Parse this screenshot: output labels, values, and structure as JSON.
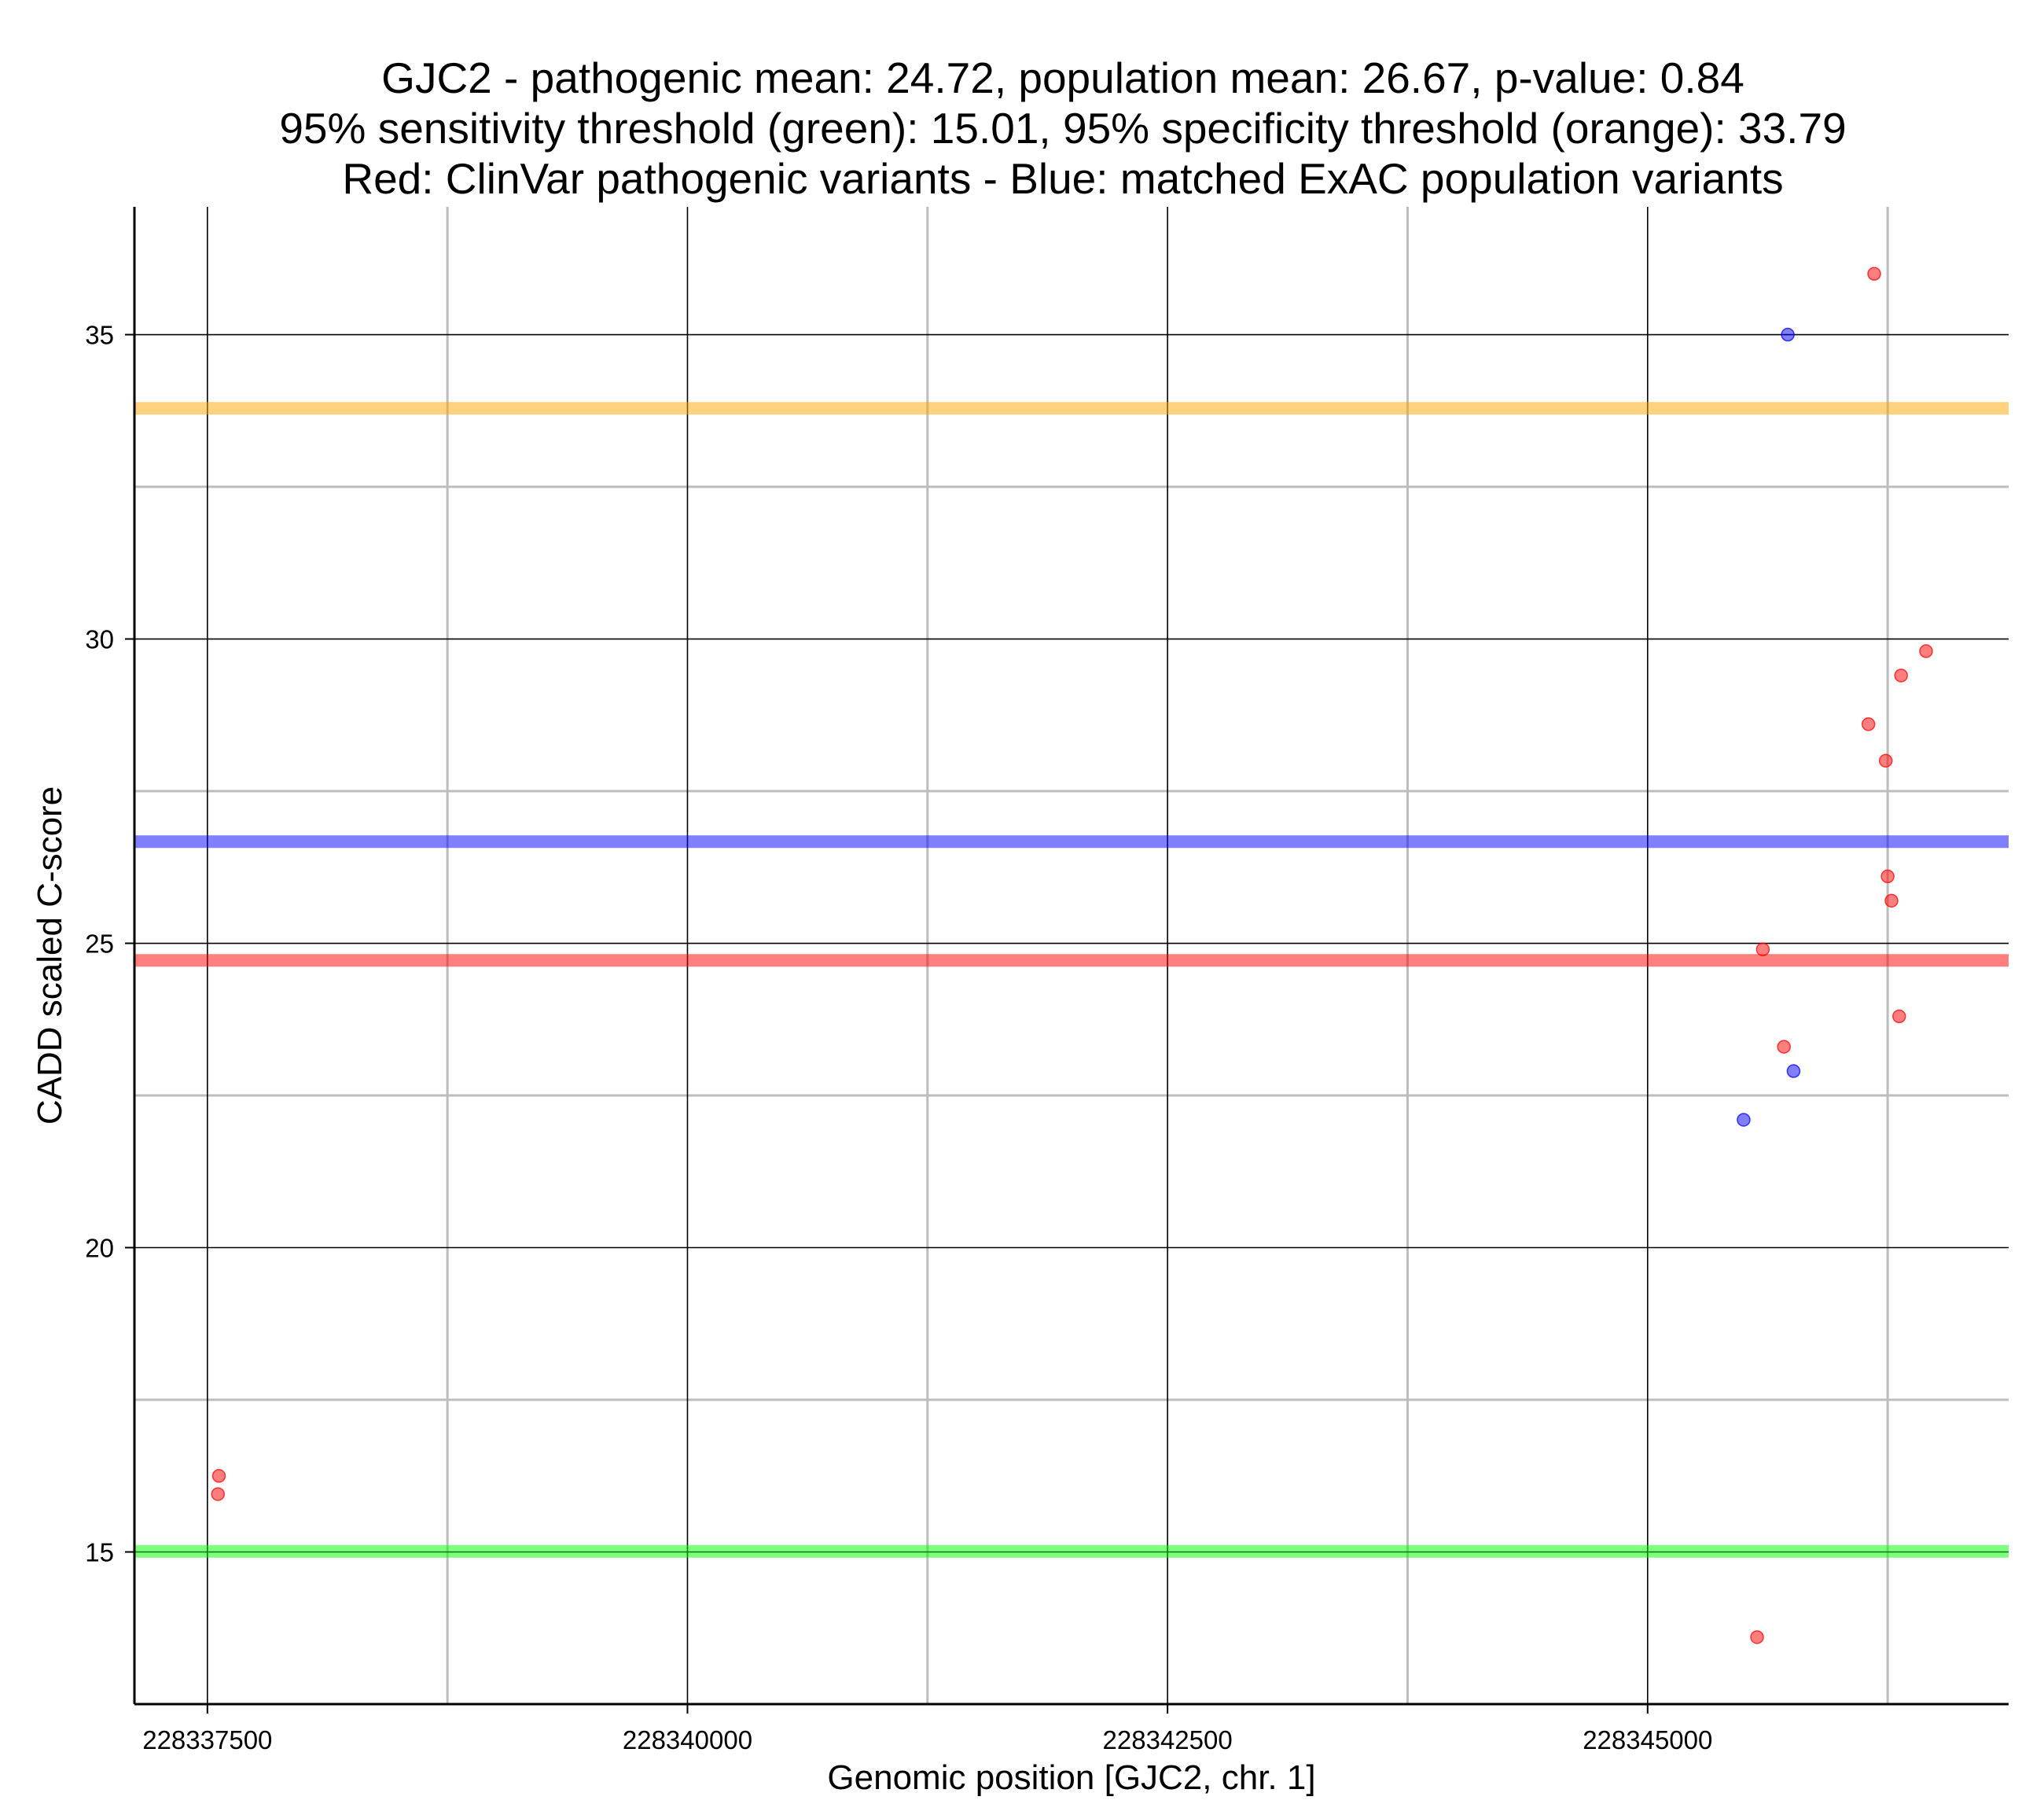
{
  "chart_data": {
    "type": "scatter",
    "title_lines": [
      "GJC2 - pathogenic mean: 24.72, population mean: 26.67, p-value: 0.84",
      "95% sensitivity threshold (green): 15.01, 95% specificity threshold (orange): 33.79",
      "Red: ClinVar pathogenic variants - Blue: matched ExAC population variants"
    ],
    "xlabel": "Genomic position [GJC2, chr. 1]",
    "ylabel": "CADD scaled C-score",
    "xlim": [
      228337120,
      228346880
    ],
    "ylim": [
      12.5,
      37.1
    ],
    "x_ticks": [
      {
        "value": 228337500,
        "label": "228337500"
      },
      {
        "value": 228340000,
        "label": "228340000"
      },
      {
        "value": 228342500,
        "label": "228342500"
      },
      {
        "value": 228345000,
        "label": "228345000"
      }
    ],
    "x_minor_grid": [
      228338750,
      228341250,
      228343750,
      228346250
    ],
    "y_ticks": [
      {
        "value": 15,
        "label": "15"
      },
      {
        "value": 20,
        "label": "20"
      },
      {
        "value": 25,
        "label": "25"
      },
      {
        "value": 30,
        "label": "30"
      },
      {
        "value": 35,
        "label": "35"
      }
    ],
    "y_minor_grid": [
      17.5,
      22.5,
      27.5,
      32.5
    ],
    "grid": true,
    "reference_lines": [
      {
        "name": "specificity-threshold",
        "y": 33.79,
        "color": "#FFA500",
        "opacity": 0.5
      },
      {
        "name": "population-mean",
        "y": 26.67,
        "color": "#0000FF",
        "opacity": 0.5
      },
      {
        "name": "pathogenic-mean",
        "y": 24.72,
        "color": "#FF0000",
        "opacity": 0.5
      },
      {
        "name": "sensitivity-threshold",
        "y": 15.01,
        "color": "#00FF00",
        "opacity": 0.5
      }
    ],
    "series": [
      {
        "name": "ClinVar pathogenic variants",
        "color": "#FF0000",
        "points": [
          {
            "x": 228337560,
            "y": 16.25
          },
          {
            "x": 228337555,
            "y": 15.95
          },
          {
            "x": 228346180,
            "y": 36.0
          },
          {
            "x": 228346450,
            "y": 29.8
          },
          {
            "x": 228346320,
            "y": 29.4
          },
          {
            "x": 228346150,
            "y": 28.6
          },
          {
            "x": 228346240,
            "y": 28.0
          },
          {
            "x": 228346250,
            "y": 26.1
          },
          {
            "x": 228346270,
            "y": 25.7
          },
          {
            "x": 228345600,
            "y": 24.9
          },
          {
            "x": 228346310,
            "y": 23.8
          },
          {
            "x": 228345710,
            "y": 23.3
          },
          {
            "x": 228345570,
            "y": 13.6
          }
        ]
      },
      {
        "name": "matched ExAC population variants",
        "color": "#0000FF",
        "points": [
          {
            "x": 228345730,
            "y": 35.0
          },
          {
            "x": 228345760,
            "y": 22.9
          },
          {
            "x": 228345500,
            "y": 22.1
          }
        ]
      }
    ]
  }
}
